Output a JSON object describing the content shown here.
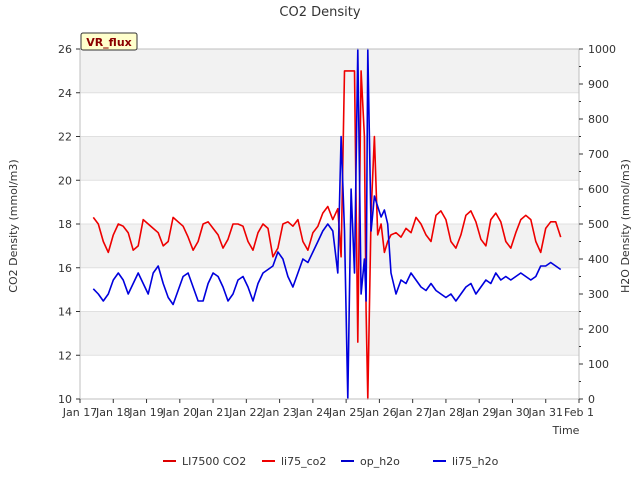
{
  "chart_data": {
    "type": "line",
    "title": "CO2 Density",
    "xlabel": "Time",
    "ylabel": "CO2 Density (mmol/m3)",
    "ylabel_right": "H2O Density (mmol/m3)",
    "badge": "VR_flux",
    "xlim": [
      17,
      32
    ],
    "x_ticks": [
      {
        "v": 17,
        "label": "Jan 17"
      },
      {
        "v": 18,
        "label": "Jan 18"
      },
      {
        "v": 19,
        "label": "Jan 19"
      },
      {
        "v": 20,
        "label": "Jan 20"
      },
      {
        "v": 21,
        "label": "Jan 21"
      },
      {
        "v": 22,
        "label": "Jan 22"
      },
      {
        "v": 23,
        "label": "Jan 23"
      },
      {
        "v": 24,
        "label": "Jan 24"
      },
      {
        "v": 25,
        "label": "Jan 25"
      },
      {
        "v": 26,
        "label": "Jan 26"
      },
      {
        "v": 27,
        "label": "Jan 27"
      },
      {
        "v": 28,
        "label": "Jan 28"
      },
      {
        "v": 29,
        "label": "Jan 29"
      },
      {
        "v": 30,
        "label": "Jan 30"
      },
      {
        "v": 31,
        "label": "Jan 31"
      },
      {
        "v": 32,
        "label": "Feb 1"
      }
    ],
    "ylim": [
      10,
      26
    ],
    "y_ticks": [
      "10",
      "12",
      "14",
      "16",
      "18",
      "20",
      "22",
      "24",
      "26"
    ],
    "ylim_right": [
      0,
      1000
    ],
    "y_ticks_right": [
      "0",
      "100",
      "200",
      "300",
      "400",
      "500",
      "600",
      "700",
      "800",
      "900",
      "1000"
    ],
    "grid": true,
    "legend_position": "bottom",
    "series": [
      {
        "name": "LI7500 CO2",
        "axis": "left",
        "color": "#dd0000",
        "x": [],
        "values": []
      },
      {
        "name": "li75_co2",
        "axis": "left",
        "color": "#ee0000",
        "x": [
          17.4,
          17.55,
          17.7,
          17.85,
          18.0,
          18.15,
          18.3,
          18.45,
          18.6,
          18.75,
          18.9,
          19.05,
          19.2,
          19.35,
          19.5,
          19.65,
          19.8,
          19.95,
          20.1,
          20.25,
          20.4,
          20.55,
          20.7,
          20.85,
          21.0,
          21.15,
          21.3,
          21.45,
          21.6,
          21.75,
          21.9,
          22.05,
          22.2,
          22.35,
          22.5,
          22.65,
          22.8,
          22.95,
          23.1,
          23.25,
          23.4,
          23.55,
          23.7,
          23.85,
          24.0,
          24.15,
          24.3,
          24.45,
          24.6,
          24.75,
          24.85,
          24.95,
          25.05,
          25.15,
          25.25,
          25.35,
          25.45,
          25.55,
          25.6,
          25.65,
          25.75,
          25.85,
          25.95,
          26.05,
          26.15,
          26.25,
          26.35,
          26.5,
          26.65,
          26.8,
          26.95,
          27.1,
          27.25,
          27.4,
          27.55,
          27.7,
          27.85,
          28.0,
          28.15,
          28.3,
          28.45,
          28.6,
          28.75,
          28.9,
          29.05,
          29.2,
          29.35,
          29.5,
          29.65,
          29.8,
          29.95,
          30.1,
          30.25,
          30.4,
          30.55,
          30.7,
          30.85,
          31.0,
          31.15,
          31.3,
          31.45
        ],
        "values": [
          18.3,
          18.0,
          17.2,
          16.7,
          17.5,
          18.0,
          17.9,
          17.6,
          16.8,
          17.0,
          18.2,
          18.0,
          17.8,
          17.6,
          17.0,
          17.2,
          18.3,
          18.1,
          17.9,
          17.4,
          16.8,
          17.2,
          18.0,
          18.1,
          17.8,
          17.5,
          16.9,
          17.3,
          18.0,
          18.0,
          17.9,
          17.2,
          16.8,
          17.6,
          18.0,
          17.8,
          16.5,
          16.9,
          18.0,
          18.1,
          17.9,
          18.2,
          17.2,
          16.8,
          17.6,
          17.9,
          18.5,
          18.8,
          18.2,
          18.7,
          16.5,
          25.0,
          25.0,
          25.0,
          25.0,
          12.6,
          25.0,
          22.0,
          14.0,
          10.0,
          18.5,
          22.0,
          17.5,
          18.0,
          16.7,
          17.2,
          17.5,
          17.6,
          17.4,
          17.8,
          17.6,
          18.3,
          18.0,
          17.5,
          17.2,
          18.4,
          18.6,
          18.2,
          17.2,
          16.9,
          17.5,
          18.4,
          18.6,
          18.1,
          17.3,
          17.0,
          18.2,
          18.5,
          18.1,
          17.2,
          16.9,
          17.6,
          18.2,
          18.4,
          18.2,
          17.2,
          16.7,
          17.8,
          18.1,
          18.1,
          17.4
        ]
      },
      {
        "name": "op_h2o",
        "axis": "right",
        "color": "#0000cc",
        "x": [],
        "values": []
      },
      {
        "name": "li75_h2o",
        "axis": "right",
        "color": "#0000dd",
        "x": [
          17.4,
          17.55,
          17.7,
          17.85,
          18.0,
          18.15,
          18.3,
          18.45,
          18.6,
          18.75,
          18.9,
          19.05,
          19.2,
          19.35,
          19.5,
          19.65,
          19.8,
          19.95,
          20.1,
          20.25,
          20.4,
          20.55,
          20.7,
          20.85,
          21.0,
          21.15,
          21.3,
          21.45,
          21.6,
          21.75,
          21.9,
          22.05,
          22.2,
          22.35,
          22.5,
          22.65,
          22.8,
          22.95,
          23.1,
          23.25,
          23.4,
          23.55,
          23.7,
          23.85,
          24.0,
          24.15,
          24.3,
          24.45,
          24.6,
          24.75,
          24.85,
          24.95,
          25.05,
          25.15,
          25.25,
          25.35,
          25.45,
          25.55,
          25.6,
          25.65,
          25.75,
          25.85,
          25.95,
          26.05,
          26.15,
          26.25,
          26.35,
          26.5,
          26.65,
          26.8,
          26.95,
          27.1,
          27.25,
          27.4,
          27.55,
          27.7,
          27.85,
          28.0,
          28.15,
          28.3,
          28.45,
          28.6,
          28.75,
          28.9,
          29.05,
          29.2,
          29.35,
          29.5,
          29.65,
          29.8,
          29.95,
          30.1,
          30.25,
          30.4,
          30.55,
          30.7,
          30.85,
          31.0,
          31.15,
          31.3,
          31.45
        ],
        "values": [
          315,
          300,
          280,
          300,
          340,
          360,
          340,
          300,
          330,
          360,
          330,
          300,
          360,
          380,
          330,
          290,
          270,
          310,
          350,
          360,
          320,
          280,
          280,
          330,
          360,
          350,
          320,
          280,
          300,
          340,
          350,
          320,
          280,
          330,
          360,
          370,
          380,
          420,
          400,
          350,
          320,
          360,
          400,
          390,
          420,
          450,
          480,
          500,
          480,
          360,
          750,
          480,
          0,
          600,
          360,
          1000,
          300,
          400,
          280,
          1000,
          480,
          580,
          550,
          520,
          540,
          500,
          360,
          300,
          340,
          330,
          360,
          340,
          320,
          310,
          330,
          310,
          300,
          290,
          300,
          280,
          300,
          320,
          330,
          300,
          320,
          340,
          330,
          360,
          340,
          350,
          340,
          350,
          360,
          350,
          340,
          350,
          380,
          380,
          390,
          380,
          370
        ]
      }
    ]
  }
}
